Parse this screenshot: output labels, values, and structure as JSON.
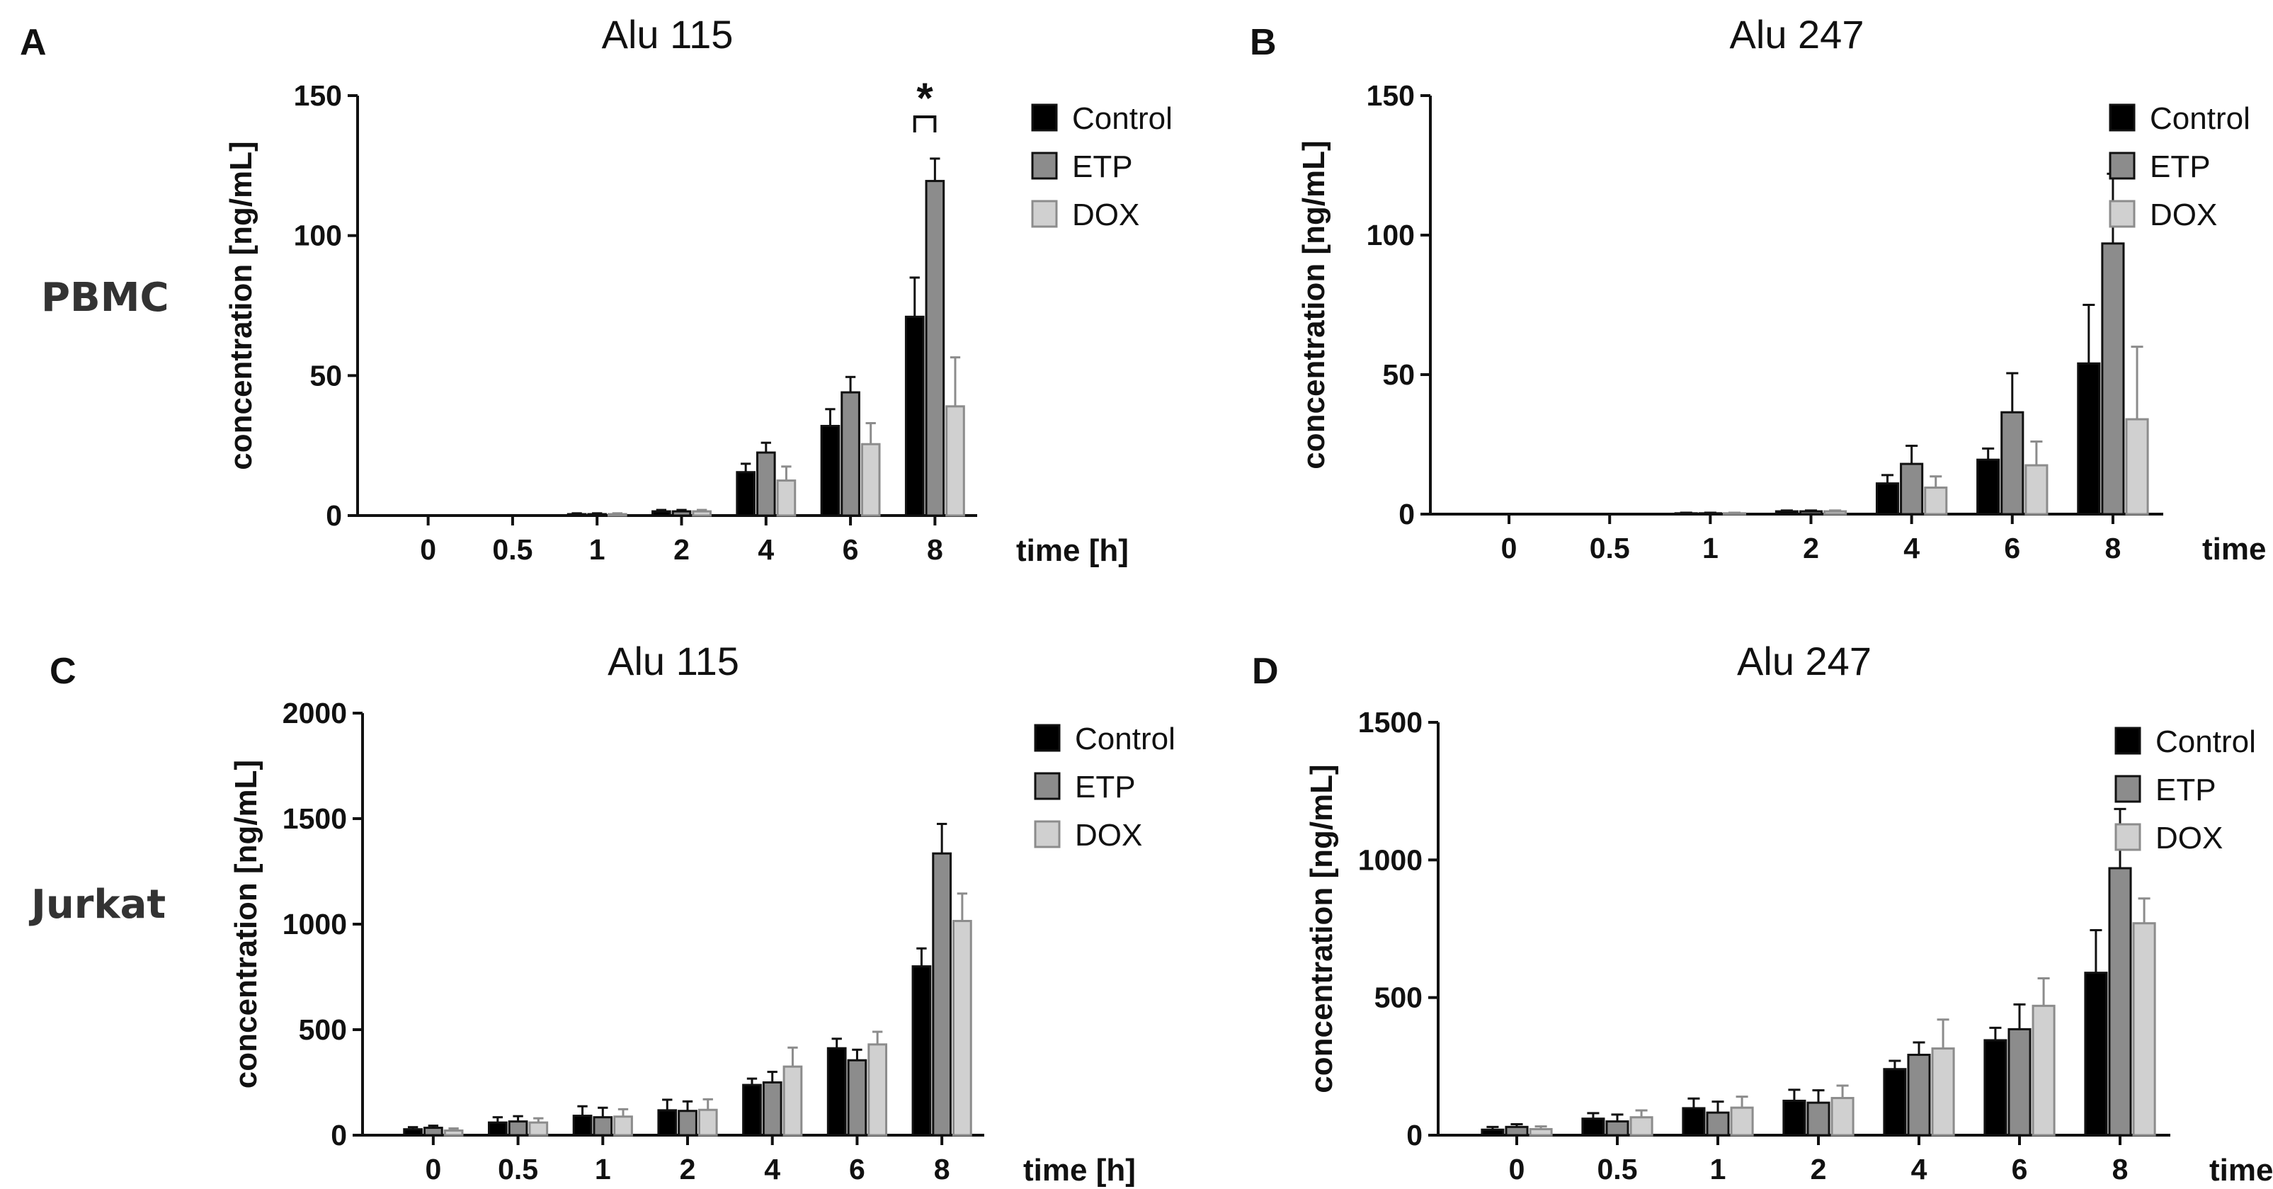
{
  "panel_letters": [
    "A",
    "B",
    "C",
    "D"
  ],
  "row_labels": [
    "PBMC",
    "Jurkat"
  ],
  "colors": {
    "Control": "#000000",
    "ETP": "#8c8c8c",
    "DOX": "#d0d0d0",
    "DOX_edge": "#8c8c8c"
  },
  "chart_data": [
    {
      "type": "bar",
      "panel": "A",
      "title": "Alu 115",
      "ylabel": "concentration [ng/mL]",
      "xlabel": "time [h]",
      "categories": [
        "0",
        "0.5",
        "1",
        "2",
        "4",
        "6",
        "8"
      ],
      "ylim": [
        0,
        150
      ],
      "yticks": [
        0,
        50,
        100,
        150
      ],
      "series": [
        {
          "name": "Control",
          "values": [
            0,
            0,
            0.5,
            1.5,
            15.5,
            32,
            71
          ],
          "errors": [
            0,
            0,
            0.3,
            0.5,
            3,
            6,
            14
          ]
        },
        {
          "name": "ETP",
          "values": [
            0,
            0,
            0.5,
            1.5,
            22.5,
            44,
            119.5
          ],
          "errors": [
            0,
            0,
            0.3,
            0.5,
            3.5,
            5.5,
            8
          ]
        },
        {
          "name": "DOX",
          "values": [
            0,
            0,
            0.5,
            1.5,
            12.5,
            25.5,
            39
          ],
          "errors": [
            0,
            0,
            0.3,
            0.5,
            5,
            7.5,
            17.5
          ]
        }
      ],
      "legend": [
        "Control",
        "ETP",
        "DOX"
      ],
      "annotation": {
        "text": "*",
        "category": "8",
        "between": [
          "Control",
          "ETP"
        ]
      }
    },
    {
      "type": "bar",
      "panel": "B",
      "title": "Alu 247",
      "ylabel": "concentration [ng/mL]",
      "xlabel": "time [h]",
      "categories": [
        "0",
        "0.5",
        "1",
        "2",
        "4",
        "6",
        "8"
      ],
      "ylim": [
        0,
        150
      ],
      "yticks": [
        0,
        50,
        100,
        150
      ],
      "series": [
        {
          "name": "Control",
          "values": [
            0,
            0,
            0.3,
            1,
            11,
            19.5,
            54
          ],
          "errors": [
            0,
            0,
            0.2,
            0.3,
            3,
            4,
            21
          ]
        },
        {
          "name": "ETP",
          "values": [
            0,
            0,
            0.3,
            1,
            18,
            36.5,
            97
          ],
          "errors": [
            0,
            0,
            0.2,
            0.3,
            6.5,
            14,
            25
          ]
        },
        {
          "name": "DOX",
          "values": [
            0,
            0,
            0.3,
            1,
            9.5,
            17.5,
            34
          ],
          "errors": [
            0,
            0,
            0.2,
            0.3,
            4,
            8.5,
            26
          ]
        }
      ],
      "legend": [
        "Control",
        "ETP",
        "DOX"
      ]
    },
    {
      "type": "bar",
      "panel": "C",
      "title": "Alu 115",
      "ylabel": "concentration [ng/mL]",
      "xlabel": "time [h]",
      "categories": [
        "0",
        "0.5",
        "1",
        "2",
        "4",
        "6",
        "8"
      ],
      "ylim": [
        0,
        2000
      ],
      "yticks": [
        0,
        500,
        1000,
        1500,
        2000
      ],
      "series": [
        {
          "name": "Control",
          "values": [
            28,
            60,
            92,
            118,
            238,
            412,
            800
          ],
          "errors": [
            10,
            25,
            45,
            50,
            30,
            45,
            85
          ]
        },
        {
          "name": "ETP",
          "values": [
            35,
            65,
            85,
            115,
            250,
            355,
            1335
          ],
          "errors": [
            10,
            25,
            45,
            45,
            50,
            50,
            140
          ]
        },
        {
          "name": "DOX",
          "values": [
            22,
            60,
            88,
            120,
            325,
            430,
            1015
          ],
          "errors": [
            10,
            20,
            35,
            50,
            90,
            60,
            130
          ]
        }
      ],
      "legend": [
        "Control",
        "ETP",
        "DOX"
      ]
    },
    {
      "type": "bar",
      "panel": "D",
      "title": "Alu 247",
      "ylabel": "concentration [ng/mL]",
      "xlabel": "time [h]",
      "categories": [
        "0",
        "0.5",
        "1",
        "2",
        "4",
        "6",
        "8"
      ],
      "ylim": [
        0,
        1500
      ],
      "yticks": [
        0,
        500,
        1000,
        1500
      ],
      "series": [
        {
          "name": "Control",
          "values": [
            20,
            60,
            98,
            125,
            240,
            345,
            590
          ],
          "errors": [
            10,
            20,
            35,
            40,
            30,
            45,
            155
          ]
        },
        {
          "name": "ETP",
          "values": [
            30,
            50,
            82,
            118,
            292,
            385,
            970
          ],
          "errors": [
            10,
            25,
            40,
            45,
            45,
            90,
            215
          ]
        },
        {
          "name": "DOX",
          "values": [
            22,
            65,
            100,
            135,
            315,
            470,
            770
          ],
          "errors": [
            10,
            25,
            40,
            45,
            105,
            100,
            90
          ]
        }
      ],
      "legend": [
        "Control",
        "ETP",
        "DOX"
      ]
    }
  ]
}
